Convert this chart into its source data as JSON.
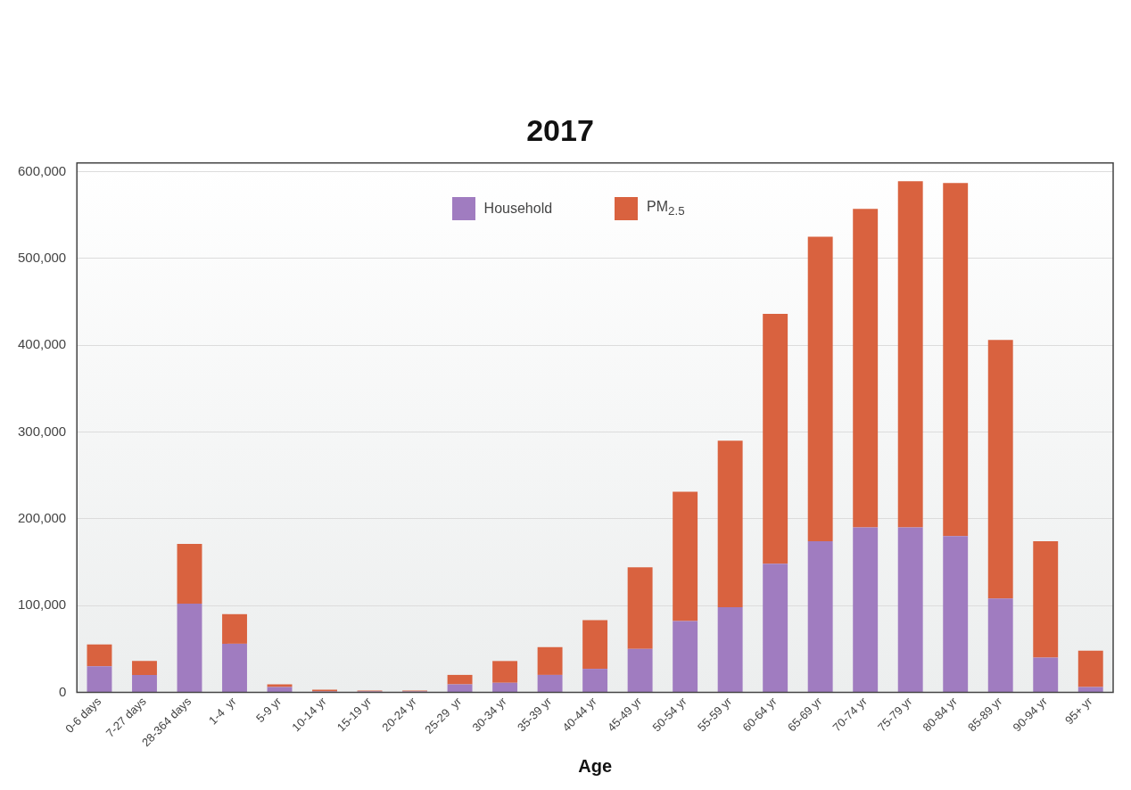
{
  "chart_data": {
    "type": "bar",
    "title": "2017",
    "xlabel": "Age",
    "stacked": true,
    "categories": [
      "0-6 days",
      "7-27 days",
      "28-364 days",
      "1-4  yr",
      "5-9 yr",
      "10-14 yr",
      "15-19 yr",
      "20-24 yr",
      "25-29  yr",
      "30-34 yr",
      "35-39 yr",
      "40-44 yr",
      "45-49 yr",
      "50-54 yr",
      "55-59 yr",
      "60-64 yr",
      "65-69 yr",
      "70-74 yr",
      "75-79 yr",
      "80-84 yr",
      "85-89 yr",
      "90-94 yr",
      "95+ yr"
    ],
    "series": [
      {
        "name": "Household",
        "color": "#a07cc0",
        "values": [
          30000,
          20000,
          102000,
          56000,
          6000,
          1000,
          1000,
          1000,
          9000,
          11000,
          20000,
          27000,
          50000,
          82000,
          98000,
          148000,
          174000,
          190000,
          190000,
          180000,
          108000,
          40000,
          6000
        ]
      },
      {
        "name": "PM$_{2.5}$",
        "color": "#d9623f",
        "values": [
          25000,
          16000,
          69000,
          34000,
          3000,
          2000,
          1000,
          1000,
          11000,
          25000,
          32000,
          56000,
          94000,
          149000,
          192000,
          288000,
          351000,
          367000,
          399000,
          407000,
          298000,
          134000,
          42000
        ]
      }
    ],
    "ylim": [
      0,
      610000
    ],
    "yticks": [
      0,
      {
        "value": 100000,
        "label": "100,000"
      },
      {
        "value": 200000,
        "label": "200,000"
      },
      {
        "value": 300000,
        "label": "300,000"
      },
      {
        "value": 400000,
        "label": "400,000"
      },
      {
        "value": 500000,
        "label": "500,000"
      },
      {
        "value": 600000,
        "label": "600,000"
      }
    ],
    "grid": "y",
    "legend": "top"
  }
}
